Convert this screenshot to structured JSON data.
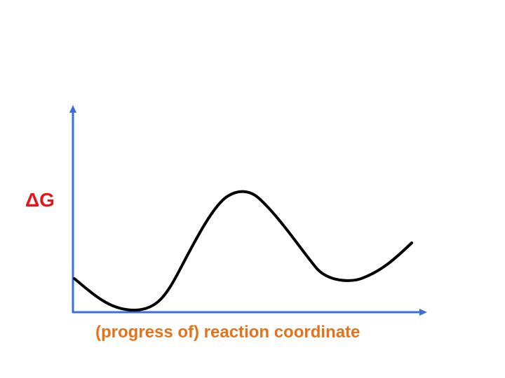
{
  "y_axis": {
    "label": "ΔG",
    "label_color": "#e8141b",
    "axis_color": "#3a6fd8"
  },
  "x_axis": {
    "label": "(progress of) reaction coordinate",
    "label_color": "#e5721a",
    "axis_color": "#3a6fd8"
  },
  "curve": {
    "color": "#000000",
    "shape": "reactant well, single transition-state peak, product well"
  }
}
